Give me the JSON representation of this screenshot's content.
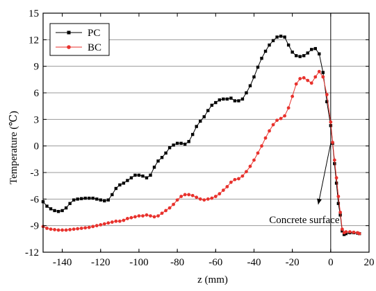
{
  "chart_data": {
    "type": "line",
    "xlabel": "z (mm)",
    "ylabel": "Temperature (℃)",
    "xlim": [
      -150,
      20
    ],
    "ylim": [
      -12,
      15
    ],
    "xticks": [
      -140,
      -120,
      -100,
      -80,
      -60,
      -40,
      -20,
      0,
      20
    ],
    "yticks": [
      -12,
      -9,
      -6,
      -3,
      0,
      3,
      6,
      9,
      12,
      15
    ],
    "grid": "horizontal",
    "legend_position": "top-left",
    "vertical_line_x": 0,
    "annotation": {
      "text": "Concrete surface",
      "point": [
        0,
        0.3
      ],
      "text_anchor": [
        -6.5,
        -6.6
      ]
    },
    "series": [
      {
        "name": "PC",
        "color": "#000000",
        "marker": "square",
        "x": [
          -150,
          -148,
          -146,
          -144,
          -142,
          -140,
          -138,
          -136,
          -134,
          -132,
          -130,
          -128,
          -126,
          -124,
          -122,
          -120,
          -118,
          -116,
          -114,
          -112,
          -110,
          -108,
          -106,
          -104,
          -102,
          -100,
          -98,
          -96,
          -94,
          -92,
          -90,
          -88,
          -86,
          -84,
          -82,
          -80,
          -78,
          -76,
          -74,
          -72,
          -70,
          -68,
          -66,
          -64,
          -62,
          -60,
          -58,
          -56,
          -54,
          -52,
          -50,
          -48,
          -46,
          -44,
          -42,
          -40,
          -38,
          -36,
          -34,
          -32,
          -30,
          -28,
          -26,
          -24,
          -22,
          -20,
          -18,
          -16,
          -14,
          -12,
          -10,
          -8,
          -6,
          -4,
          -2,
          0,
          1,
          2,
          3,
          4,
          5,
          6,
          7,
          8,
          10,
          12,
          14,
          15
        ],
        "y": [
          -6.3,
          -6.8,
          -7.1,
          -7.3,
          -7.4,
          -7.3,
          -7.0,
          -6.5,
          -6.1,
          -6.0,
          -5.95,
          -5.9,
          -5.9,
          -5.9,
          -6.0,
          -6.1,
          -6.2,
          -6.1,
          -5.5,
          -4.8,
          -4.4,
          -4.2,
          -3.9,
          -3.6,
          -3.3,
          -3.3,
          -3.4,
          -3.6,
          -3.3,
          -2.4,
          -1.7,
          -1.3,
          -0.8,
          -0.2,
          0.1,
          0.3,
          0.3,
          0.2,
          0.5,
          1.3,
          2.2,
          2.8,
          3.3,
          4.0,
          4.6,
          4.9,
          5.2,
          5.3,
          5.3,
          5.4,
          5.1,
          5.1,
          5.3,
          6.0,
          6.8,
          7.8,
          8.9,
          9.9,
          10.7,
          11.4,
          11.9,
          12.3,
          12.4,
          12.3,
          11.4,
          10.6,
          10.2,
          10.1,
          10.2,
          10.5,
          10.9,
          11.0,
          10.4,
          8.3,
          5.0,
          2.3,
          0.3,
          -2.0,
          -4.2,
          -6.5,
          -7.8,
          -9.6,
          -10.0,
          -9.9,
          -9.8,
          -9.8,
          -9.85,
          -9.9
        ]
      },
      {
        "name": "BC",
        "color": "#e8322d",
        "marker": "circle",
        "x": [
          -150,
          -148,
          -146,
          -144,
          -142,
          -140,
          -138,
          -136,
          -134,
          -132,
          -130,
          -128,
          -126,
          -124,
          -122,
          -120,
          -118,
          -116,
          -114,
          -112,
          -110,
          -108,
          -106,
          -104,
          -102,
          -100,
          -98,
          -96,
          -94,
          -92,
          -90,
          -88,
          -86,
          -84,
          -82,
          -80,
          -78,
          -76,
          -74,
          -72,
          -70,
          -68,
          -66,
          -64,
          -62,
          -60,
          -58,
          -56,
          -54,
          -52,
          -50,
          -48,
          -46,
          -44,
          -42,
          -40,
          -38,
          -36,
          -34,
          -32,
          -30,
          -28,
          -26,
          -24,
          -22,
          -20,
          -18,
          -16,
          -14,
          -12,
          -10,
          -8,
          -6,
          -4,
          -2,
          0,
          1,
          2,
          3,
          4,
          5,
          6,
          7,
          8,
          10,
          12,
          14,
          15
        ],
        "y": [
          -9.1,
          -9.3,
          -9.4,
          -9.45,
          -9.5,
          -9.5,
          -9.5,
          -9.45,
          -9.4,
          -9.35,
          -9.3,
          -9.25,
          -9.2,
          -9.1,
          -9.0,
          -8.9,
          -8.8,
          -8.7,
          -8.6,
          -8.5,
          -8.5,
          -8.4,
          -8.2,
          -8.1,
          -8.0,
          -7.9,
          -7.9,
          -7.8,
          -7.9,
          -8.0,
          -7.9,
          -7.6,
          -7.3,
          -7.0,
          -6.6,
          -6.1,
          -5.7,
          -5.5,
          -5.5,
          -5.6,
          -5.8,
          -6.0,
          -6.1,
          -6.0,
          -5.9,
          -5.7,
          -5.4,
          -5.0,
          -4.6,
          -4.1,
          -3.8,
          -3.7,
          -3.4,
          -2.9,
          -2.3,
          -1.6,
          -0.8,
          0.0,
          0.9,
          1.7,
          2.4,
          2.9,
          3.1,
          3.4,
          4.3,
          5.6,
          7.0,
          7.6,
          7.7,
          7.4,
          7.1,
          7.8,
          8.4,
          7.8,
          5.8,
          2.7,
          0.4,
          -1.6,
          -3.6,
          -5.7,
          -7.5,
          -9.4,
          -9.8,
          -9.7,
          -9.7,
          -9.75,
          -9.8,
          -9.9
        ]
      }
    ]
  }
}
